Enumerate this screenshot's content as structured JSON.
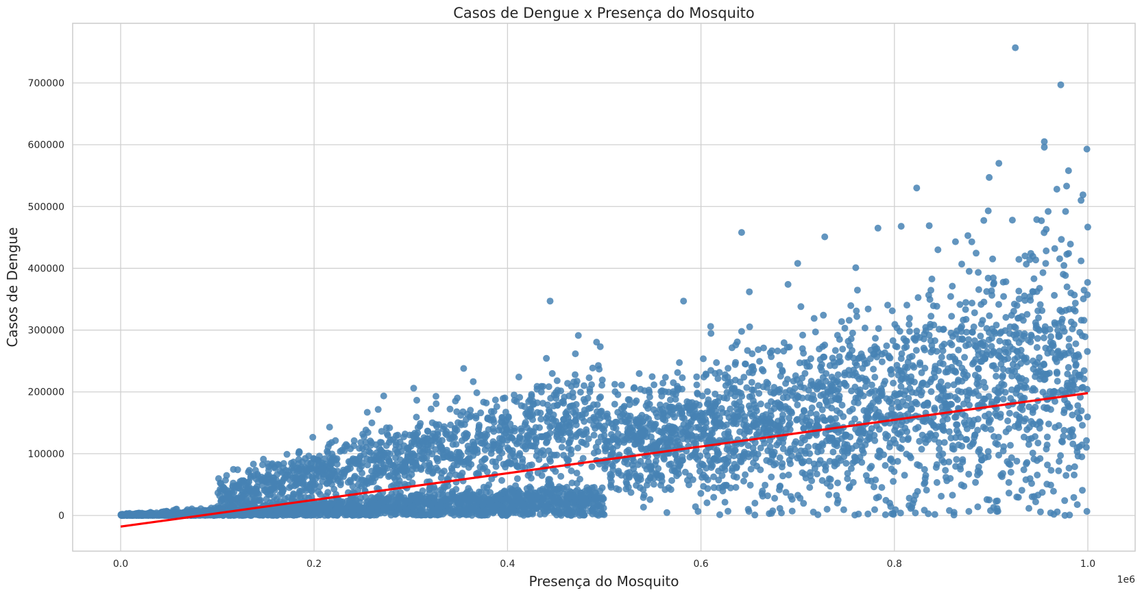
{
  "chart_data": {
    "type": "scatter",
    "title": "Casos de Dengue x Presença do Mosquito",
    "xlabel": "Presença do Mosquito",
    "ylabel": "Casos de Dengue",
    "x_offset_label": "1e6",
    "xlim": [
      -50000,
      1050000
    ],
    "ylim": [
      -57000,
      795000
    ],
    "xticks": [
      0,
      200000,
      400000,
      600000,
      800000,
      1000000
    ],
    "xtick_labels": [
      "0.0",
      "0.2",
      "0.4",
      "0.6",
      "0.8",
      "1.0"
    ],
    "yticks": [
      0,
      100000,
      200000,
      300000,
      400000,
      500000,
      600000,
      700000
    ],
    "ytick_labels": [
      "0",
      "100000",
      "200000",
      "300000",
      "400000",
      "500000",
      "600000",
      "700000"
    ],
    "grid": true,
    "colors": {
      "points": "#4682b4",
      "regression": "#ff0000",
      "grid": "#d0d0d0",
      "frame": "#cccccc"
    },
    "series": [
      {
        "kind": "points",
        "values": [
          [
            925000,
            757000
          ],
          [
            972000,
            697000
          ],
          [
            955000,
            605000
          ],
          [
            955000,
            596000
          ],
          [
            999000,
            593000
          ],
          [
            908000,
            570000
          ],
          [
            980000,
            558000
          ],
          [
            898000,
            547000
          ],
          [
            968000,
            528000
          ],
          [
            995000,
            519000
          ],
          [
            978000,
            533000
          ],
          [
            993000,
            510000
          ],
          [
            823000,
            530000
          ],
          [
            897000,
            493000
          ],
          [
            959000,
            492000
          ],
          [
            977000,
            492000
          ],
          [
            922000,
            478000
          ],
          [
            957000,
            463000
          ],
          [
            642000,
            458000
          ],
          [
            836000,
            469000
          ],
          [
            807000,
            468000
          ],
          [
            952000,
            477000
          ],
          [
            783000,
            465000
          ],
          [
            728000,
            451000
          ],
          [
            876000,
            453000
          ],
          [
            993000,
            412000
          ],
          [
            444000,
            347000
          ],
          [
            582000,
            347000
          ],
          [
            303000,
            206000
          ],
          [
            255000,
            167000
          ],
          [
            216000,
            143000
          ],
          [
            121000,
            74000
          ],
          [
            700000,
            408000
          ],
          [
            760000,
            401000
          ],
          [
            880000,
            443000
          ],
          [
            940000,
            414000
          ],
          [
            690000,
            374000
          ],
          [
            650000,
            362000
          ],
          [
            845000,
            430000
          ],
          [
            610000,
            306000
          ]
        ],
        "clusters": [
          {
            "x_range": [
              0,
              100000
            ],
            "y_slope": 0.03,
            "y_spread": 4000,
            "count": 520
          },
          {
            "x_range": [
              100000,
              500000
            ],
            "y_slope": 0.05,
            "y_spread": 16000,
            "count": 1500
          },
          {
            "x_range": [
              100000,
              500000
            ],
            "y_slope": 0.32,
            "y_spread": 45000,
            "count": 1200
          },
          {
            "x_range": [
              500000,
              1000000
            ],
            "y_slope": 0.22,
            "y_spread": 110000,
            "count": 2300
          }
        ]
      },
      {
        "kind": "regression_line",
        "values": [
          [
            0,
            -18000
          ],
          [
            1000000,
            198000
          ]
        ]
      }
    ]
  }
}
